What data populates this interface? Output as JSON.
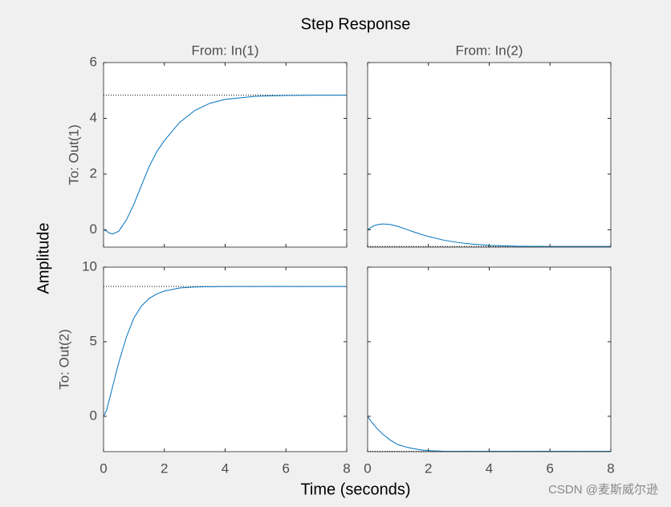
{
  "figure": {
    "title": "Step Response",
    "xlabel": "Time (seconds)",
    "ylabel": "Amplitude",
    "watermark": "CSDN @麦斯威尔逊"
  },
  "chart_data": [
    {
      "type": "line",
      "title": "From: In(1)",
      "ylabel": "To: Out(1)",
      "x": [
        0,
        0.1,
        0.2,
        0.3,
        0.5,
        0.75,
        1,
        1.25,
        1.5,
        1.75,
        2,
        2.5,
        3,
        3.5,
        4,
        5,
        6,
        7,
        8
      ],
      "series": [
        {
          "color": "#0072bd",
          "values": [
            0,
            -0.05,
            -0.12,
            -0.15,
            -0.05,
            0.35,
            0.92,
            1.6,
            2.27,
            2.8,
            3.2,
            3.85,
            4.28,
            4.54,
            4.68,
            4.79,
            4.82,
            4.83,
            4.83
          ]
        }
      ],
      "steady_state": 4.83,
      "xlim": [
        0,
        8
      ],
      "ylim": [
        -0.62,
        6
      ],
      "yticks": [
        0,
        2,
        4,
        6
      ]
    },
    {
      "type": "line",
      "title": "From: In(2)",
      "x": [
        0,
        0.1,
        0.2,
        0.3,
        0.5,
        0.75,
        1,
        1.25,
        1.5,
        1.75,
        2,
        2.5,
        3,
        3.5,
        4,
        5,
        6,
        7,
        8
      ],
      "series": [
        {
          "color": "#0072bd",
          "values": [
            0,
            0.08,
            0.14,
            0.18,
            0.21,
            0.19,
            0.12,
            0.03,
            -0.07,
            -0.16,
            -0.24,
            -0.37,
            -0.46,
            -0.52,
            -0.56,
            -0.59,
            -0.6,
            -0.6,
            -0.6
          ]
        }
      ],
      "steady_state": -0.6,
      "xlim": [
        0,
        8
      ],
      "ylim": [
        -0.62,
        6
      ]
    },
    {
      "type": "line",
      "ylabel": "To: Out(2)",
      "x": [
        0,
        0.1,
        0.2,
        0.3,
        0.5,
        0.75,
        1,
        1.25,
        1.5,
        1.75,
        2,
        2.5,
        3,
        3.5,
        4,
        5,
        6,
        7,
        8
      ],
      "series": [
        {
          "color": "#0072bd",
          "values": [
            0,
            0.4,
            1.2,
            2.0,
            3.6,
            5.3,
            6.6,
            7.4,
            7.9,
            8.2,
            8.4,
            8.6,
            8.67,
            8.69,
            8.7,
            8.7,
            8.7,
            8.7,
            8.7
          ]
        }
      ],
      "steady_state": 8.7,
      "xlim": [
        0,
        8
      ],
      "ylim": [
        -2.37,
        10
      ],
      "yticks": [
        0,
        5,
        10
      ],
      "xticks": [
        0,
        2,
        4,
        6,
        8
      ]
    },
    {
      "type": "line",
      "x": [
        0,
        0.1,
        0.2,
        0.3,
        0.5,
        0.75,
        1,
        1.25,
        1.5,
        1.75,
        2,
        2.5,
        3,
        3.5,
        4,
        5,
        6,
        7,
        8
      ],
      "series": [
        {
          "color": "#0072bd",
          "values": [
            0,
            -0.3,
            -0.55,
            -0.8,
            -1.2,
            -1.6,
            -1.9,
            -2.05,
            -2.17,
            -2.25,
            -2.3,
            -2.34,
            -2.35,
            -2.35,
            -2.35,
            -2.35,
            -2.35,
            -2.35,
            -2.35
          ]
        }
      ],
      "steady_state": -2.35,
      "xlim": [
        0,
        8
      ],
      "ylim": [
        -2.37,
        10
      ],
      "xticks": [
        0,
        2,
        4,
        6,
        8
      ]
    }
  ]
}
